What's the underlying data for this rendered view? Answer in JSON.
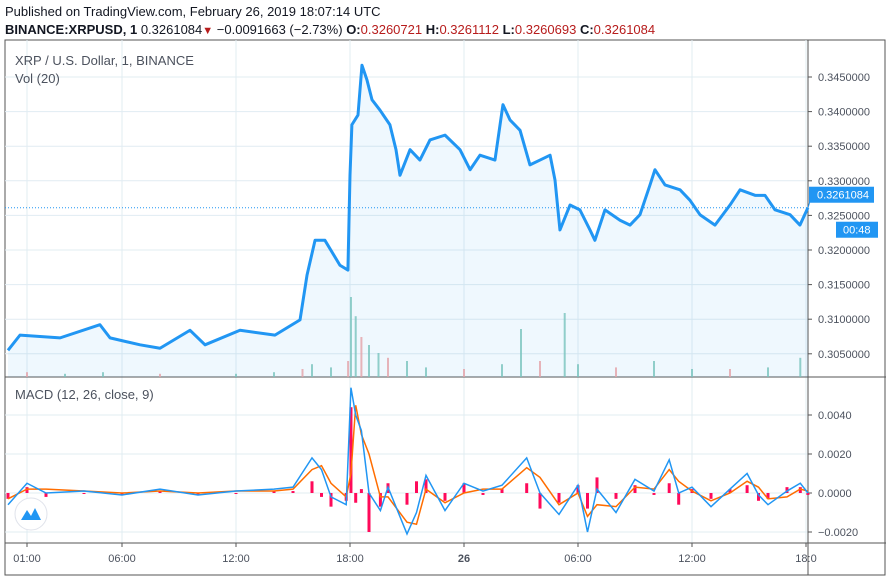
{
  "header": {
    "published": "Published on TradingView.com, February 26, 2019 18:07:14 UTC",
    "symbol": "BINANCE:XRPUSD, 1",
    "last": "0.3261084",
    "change": "−0.0091663 (−2.73%)",
    "change_direction_icon": "triangle-down-icon",
    "o_label": "O:",
    "o": "0.3260721",
    "h_label": "H:",
    "h": "0.3261112",
    "l_label": "L:",
    "l": "0.3260693",
    "c_label": "C:",
    "c": "0.3261084"
  },
  "legend": {
    "title": "XRP / U.S. Dollar, 1, BINANCE",
    "volume": "Vol (20)",
    "macd": "MACD (12, 26, close, 9)"
  },
  "price_label": {
    "value": "0.3261084",
    "countdown": "00:48"
  },
  "colors": {
    "price": "#2196f3",
    "macd": "#2196f3",
    "signal": "#ff6d00",
    "hist": "#ff0a5a",
    "label_bg": "#2196f3",
    "vol_up": "#7fc7b9",
    "vol_down": "#f4a3a3"
  },
  "chart_data": [
    {
      "type": "line",
      "xlabel": "",
      "ylabel": "",
      "x_unit": "hours since Feb 25 00:00 UTC",
      "x_ticks": [
        {
          "h": 1,
          "label": "01:00"
        },
        {
          "h": 6,
          "label": "06:00"
        },
        {
          "h": 12,
          "label": "12:00"
        },
        {
          "h": 18,
          "label": "18:00"
        },
        {
          "h": 24,
          "label": "26"
        },
        {
          "h": 30,
          "label": "06:00"
        },
        {
          "h": 36,
          "label": "12:00"
        },
        {
          "h": 42,
          "label": "18:0"
        }
      ],
      "ylim": [
        0.3015,
        0.3485
      ],
      "y_ticks": [
        "0.3450000",
        "0.3400000",
        "0.3350000",
        "0.3300000",
        "0.3250000",
        "0.3200000",
        "0.3150000",
        "0.3100000",
        "0.3050000"
      ],
      "grid": true,
      "x": [
        0,
        0.63,
        2.74,
        4.84,
        5.37,
        6.95,
        8.0,
        9.58,
        10.37,
        12.21,
        14.05,
        15.37,
        15.74,
        16.16,
        16.68,
        17.47,
        17.89,
        18.0,
        18.1,
        18.42,
        18.63,
        18.89,
        19.16,
        19.58,
        20.1,
        20.42,
        20.63,
        21.16,
        21.68,
        22.21,
        23.0,
        23.79,
        24.32,
        24.84,
        25.63,
        26.05,
        26.42,
        26.95,
        27.47,
        28.0,
        28.53,
        28.79,
        29.05,
        29.58,
        30.1,
        30.63,
        30.89,
        31.42,
        32.21,
        32.74,
        33.26,
        33.79,
        34.05,
        34.58,
        35.37,
        35.89,
        36.42,
        37.21,
        38.0,
        38.53,
        39.32,
        39.84,
        40.37,
        41.16,
        41.68,
        42.1
      ],
      "series": [
        {
          "values": [
            0.3055,
            0.3077,
            0.3073,
            0.3092,
            0.3073,
            0.3063,
            0.3058,
            0.3084,
            0.3063,
            0.3084,
            0.3077,
            0.3099,
            0.3164,
            0.3214,
            0.3214,
            0.3178,
            0.3171,
            0.3308,
            0.3381,
            0.3395,
            0.3467,
            0.3446,
            0.3417,
            0.3402,
            0.3381,
            0.3345,
            0.3308,
            0.3345,
            0.333,
            0.3359,
            0.3366,
            0.3345,
            0.3316,
            0.3337,
            0.333,
            0.341,
            0.3388,
            0.3373,
            0.3323,
            0.333,
            0.3337,
            0.3301,
            0.3229,
            0.3265,
            0.3258,
            0.3229,
            0.3214,
            0.3258,
            0.3243,
            0.3236,
            0.3251,
            0.3294,
            0.3316,
            0.3294,
            0.3287,
            0.3272,
            0.3251,
            0.3236,
            0.3265,
            0.3287,
            0.3279,
            0.3279,
            0.3258,
            0.3251,
            0.3236,
            0.3261
          ]
        }
      ],
      "last_price": 0.3261084
    },
    {
      "type": "bar",
      "name_shown": "Vol (20)",
      "x": [
        1,
        3,
        5,
        8,
        12,
        14,
        15.5,
        16,
        17,
        17.9,
        18.05,
        18.3,
        18.6,
        19,
        19.5,
        20,
        21,
        22,
        24,
        26,
        27,
        28,
        29.3,
        30,
        32,
        34,
        36,
        38,
        40,
        41.7
      ],
      "values": [
        3,
        2,
        3,
        2,
        2,
        3,
        5,
        8,
        6,
        10,
        50,
        38,
        25,
        20,
        15,
        12,
        10,
        6,
        5,
        8,
        30,
        10,
        40,
        8,
        6,
        10,
        5,
        5,
        6,
        12
      ]
    },
    {
      "type": "line",
      "ylim": [
        -0.0026,
        0.0058
      ],
      "y_ticks": [
        "0.0040",
        "0.0020",
        "0.0000",
        "−0.0020"
      ],
      "x": [
        0,
        1,
        2,
        4,
        6,
        8,
        10,
        12,
        14,
        15,
        16,
        16.5,
        17,
        17.8,
        18.05,
        18.3,
        18.6,
        19,
        19.6,
        20,
        21,
        21.5,
        22,
        23,
        24,
        25,
        26,
        27.3,
        28,
        29,
        30,
        30.5,
        31,
        32,
        33,
        34,
        34.8,
        35.3,
        36,
        37,
        38,
        38.9,
        39.5,
        40,
        41,
        41.7,
        42.1
      ],
      "series": [
        {
          "key": "macd",
          "values": [
            -0.0006,
            0.0005,
            0.0,
            0.0001,
            -0.0001,
            0.0002,
            -0.0001,
            0.0001,
            0.0002,
            0.0003,
            0.0018,
            0.0012,
            -0.0002,
            -0.0006,
            0.0054,
            0.004,
            0.0032,
            0.0,
            -0.0009,
            0.0003,
            -0.0021,
            -0.001,
            0.0009,
            -0.0009,
            0.0005,
            0.0001,
            0.0004,
            0.0018,
            0.0,
            -0.0011,
            0.0004,
            -0.002,
            0.0002,
            -0.001,
            0.0007,
            0.0001,
            0.0017,
            0.0,
            0.0003,
            -0.0007,
            0.0002,
            0.001,
            -0.0001,
            -0.0006,
            0.0001,
            0.0005,
            0.0
          ]
        },
        {
          "key": "signal",
          "values": [
            -0.0003,
            0.0002,
            0.0002,
            0.0001,
            0,
            0.0001,
            0,
            0.0001,
            0.0001,
            0.0002,
            0.0012,
            0.0014,
            0.0005,
            -0.0002,
            0.001,
            0.0045,
            0.003,
            0.002,
            -0.0002,
            -0.0002,
            -0.0015,
            -0.0016,
            0.0002,
            -0.0005,
            0.0,
            0.0002,
            0.0002,
            0.0013,
            0.0008,
            -0.0006,
            0.0,
            -0.0012,
            -0.0006,
            -0.0007,
            0.0003,
            0.0002,
            0.0012,
            0.0006,
            0.0001,
            -0.0004,
            0.0,
            0.0006,
            0.0003,
            -0.0003,
            -0.0002,
            0.0002,
            0.0001
          ]
        }
      ]
    }
  ]
}
